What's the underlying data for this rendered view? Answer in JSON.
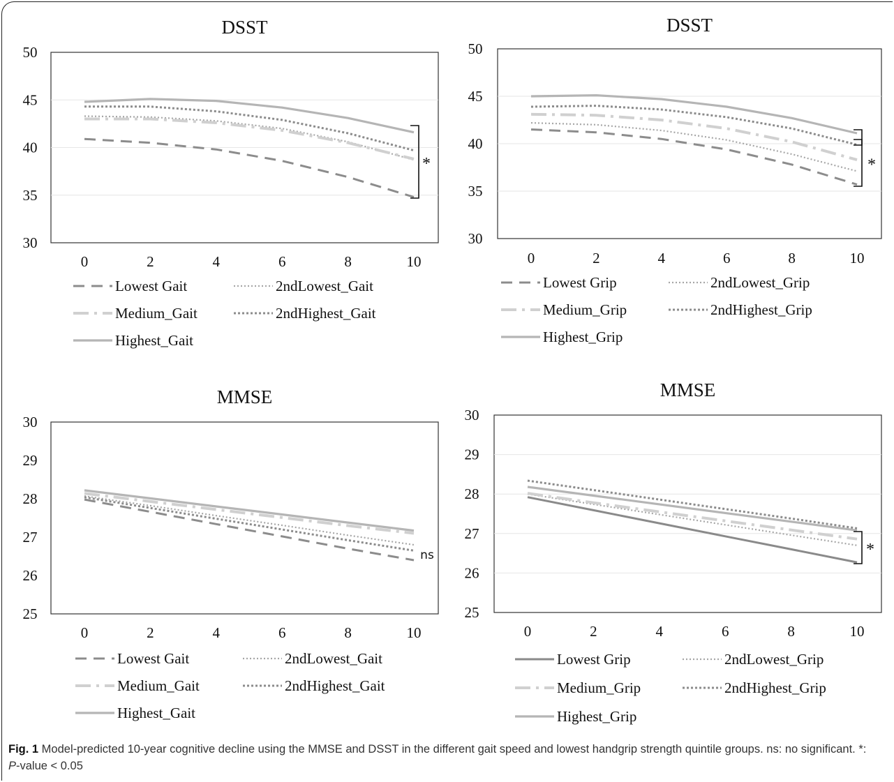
{
  "chart_data": [
    {
      "type": "line",
      "title": "DSST",
      "xlabel": "",
      "ylabel": "",
      "ylim": [
        30,
        50
      ],
      "yticks": [
        "30",
        "35",
        "40",
        "45",
        "50"
      ],
      "xticks": [
        "0",
        "2",
        "4",
        "6",
        "8",
        "10"
      ],
      "x": [
        0,
        2,
        4,
        6,
        8,
        10
      ],
      "grid": "horizontal",
      "legend_placement": "bottom",
      "significance": "*",
      "series": [
        {
          "name": "Lowest Gait",
          "style": "dashed",
          "color": "#8c8c8c",
          "values": [
            40.9,
            40.5,
            39.8,
            38.6,
            36.9,
            34.8
          ]
        },
        {
          "name": "2ndLowest_Gait",
          "style": "dotted",
          "color": "#a6a6a6",
          "values": [
            43.3,
            43.2,
            42.8,
            42.0,
            40.6,
            38.7
          ]
        },
        {
          "name": "Medium_Gait",
          "style": "dashdot",
          "color": "#d0d0d0",
          "values": [
            43.0,
            43.0,
            42.6,
            41.8,
            40.5,
            38.8
          ]
        },
        {
          "name": "2ndHighest_Gait",
          "style": "dotted-bold",
          "color": "#8c8c8c",
          "values": [
            44.3,
            44.3,
            43.8,
            42.9,
            41.5,
            39.7
          ]
        },
        {
          "name": "Highest_Gait",
          "style": "solid",
          "color": "#b5b5b5",
          "values": [
            44.8,
            45.1,
            44.9,
            44.2,
            43.1,
            41.6
          ]
        }
      ]
    },
    {
      "type": "line",
      "title": "DSST",
      "xlabel": "",
      "ylabel": "",
      "ylim": [
        30,
        50
      ],
      "yticks": [
        "30",
        "35",
        "40",
        "45",
        "50"
      ],
      "xticks": [
        "0",
        "2",
        "4",
        "6",
        "8",
        "10"
      ],
      "x": [
        0,
        2,
        4,
        6,
        8,
        10
      ],
      "grid": "horizontal",
      "legend_placement": "bottom",
      "significance": "*",
      "series": [
        {
          "name": "Lowest Grip",
          "style": "dashed",
          "color": "#8c8c8c",
          "values": [
            41.5,
            41.2,
            40.5,
            39.4,
            37.8,
            35.7
          ]
        },
        {
          "name": "2ndLowest_Grip",
          "style": "dotted",
          "color": "#a6a6a6",
          "values": [
            42.2,
            42.0,
            41.4,
            40.4,
            38.9,
            37.1
          ]
        },
        {
          "name": "Medium_Grip",
          "style": "dashdot",
          "color": "#d0d0d0",
          "values": [
            43.1,
            43.0,
            42.5,
            41.6,
            40.2,
            38.3
          ]
        },
        {
          "name": "2ndHighest_Grip",
          "style": "dotted-bold",
          "color": "#8c8c8c",
          "values": [
            43.9,
            44.0,
            43.6,
            42.8,
            41.6,
            39.9
          ]
        },
        {
          "name": "Highest_Grip",
          "style": "solid",
          "color": "#b5b5b5",
          "values": [
            45.0,
            45.1,
            44.7,
            43.9,
            42.7,
            41.1
          ]
        }
      ]
    },
    {
      "type": "line",
      "title": "MMSE",
      "xlabel": "",
      "ylabel": "",
      "ylim": [
        25,
        30
      ],
      "yticks": [
        "25",
        "26",
        "27",
        "28",
        "29",
        "30"
      ],
      "xticks": [
        "0",
        "2",
        "4",
        "6",
        "8",
        "10"
      ],
      "x": [
        0,
        2,
        4,
        6,
        8,
        10
      ],
      "grid": "none",
      "legend_placement": "bottom",
      "significance": "ns",
      "series": [
        {
          "name": "Lowest Gait",
          "style": "dashed",
          "color": "#8c8c8c",
          "values": [
            27.98,
            27.66,
            27.34,
            27.02,
            26.7,
            26.4
          ]
        },
        {
          "name": "2ndLowest_Gait",
          "style": "dotted",
          "color": "#a6a6a6",
          "values": [
            28.07,
            27.82,
            27.56,
            27.31,
            27.05,
            26.8
          ]
        },
        {
          "name": "Medium_Gait",
          "style": "dashdot",
          "color": "#d0d0d0",
          "values": [
            28.14,
            27.93,
            27.72,
            27.51,
            27.3,
            27.1
          ]
        },
        {
          "name": "2ndHighest_Gait",
          "style": "dotted-bold",
          "color": "#8c8c8c",
          "values": [
            28.04,
            27.76,
            27.48,
            27.2,
            26.92,
            26.65
          ]
        },
        {
          "name": "Highest_Gait",
          "style": "solid",
          "color": "#b5b5b5",
          "values": [
            28.22,
            28.01,
            27.8,
            27.59,
            27.38,
            27.17
          ]
        }
      ]
    },
    {
      "type": "line",
      "title": "MMSE",
      "xlabel": "",
      "ylabel": "",
      "ylim": [
        25,
        30
      ],
      "yticks": [
        "25",
        "26",
        "27",
        "28",
        "29",
        "30"
      ],
      "xticks": [
        "0",
        "2",
        "4",
        "6",
        "8",
        "10"
      ],
      "x": [
        0,
        2,
        4,
        6,
        8,
        10
      ],
      "grid": "horizontal",
      "legend_placement": "bottom",
      "significance": "*",
      "series": [
        {
          "name": "Lowest Grip",
          "style": "solid-dark",
          "color": "#8a8a8a",
          "values": [
            27.92,
            27.59,
            27.26,
            26.93,
            26.6,
            26.27
          ]
        },
        {
          "name": "2ndLowest_Grip",
          "style": "dotted",
          "color": "#a6a6a6",
          "values": [
            28.0,
            27.74,
            27.48,
            27.22,
            26.96,
            26.7
          ]
        },
        {
          "name": "Medium_Grip",
          "style": "dashdot",
          "color": "#d0d0d0",
          "values": [
            28.02,
            27.78,
            27.55,
            27.32,
            27.09,
            26.86
          ]
        },
        {
          "name": "2ndHighest_Grip",
          "style": "dotted-bold",
          "color": "#8c8c8c",
          "values": [
            28.34,
            28.1,
            27.86,
            27.62,
            27.38,
            27.13
          ]
        },
        {
          "name": "Highest_Grip",
          "style": "solid",
          "color": "#b5b5b5",
          "values": [
            28.18,
            27.96,
            27.74,
            27.52,
            27.3,
            27.08
          ]
        }
      ]
    }
  ],
  "caption": {
    "label": "Fig. 1",
    "text_before_italic": " Model-predicted 10-year cognitive decline using the MMSE and DSST in the different gait speed and lowest handgrip strength quintile groups. ns: no significant. *: ",
    "italic": "P",
    "text_after_italic": "-value < 0.05"
  }
}
